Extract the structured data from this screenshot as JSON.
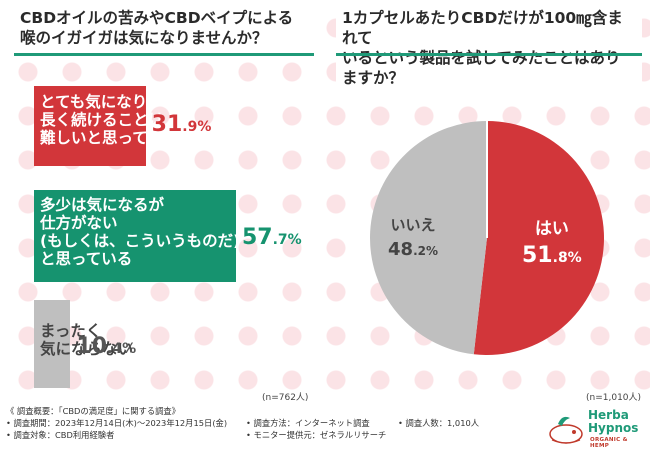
{
  "left_chart": {
    "title_line1": "CBDオイルの苦みやCBDベイプによる",
    "title_line2": "喉のイガイガは気になりませんか？",
    "n": "(n=762人)",
    "bars": [
      {
        "label": [
          "とても気になり、",
          "長く続けることは",
          "難しいと思っている"
        ],
        "value": 31.9,
        "pct_int": "31",
        "pct_dec": ".9%",
        "color": "#d2363a"
      },
      {
        "label": [
          "多少は気になるが",
          "仕方がない",
          "(もしくは、こういうものだ)",
          "と思っている"
        ],
        "value": 57.7,
        "pct_int": "57",
        "pct_dec": ".7%",
        "color": "#16936f"
      },
      {
        "label": [
          "まったく",
          "気にならない"
        ],
        "value": 10.4,
        "pct_int": "10",
        "pct_dec": ".4%",
        "color": "#bfbfbf"
      }
    ]
  },
  "right_chart": {
    "title_line1": "1カプセルあたりCBDだけが100㎎含まれて",
    "title_line2": "いるという製品を試してみたことはありますか？",
    "n": "(n=1,010人)"
  },
  "chart_data": [
    {
      "type": "bar",
      "title": "CBDオイルの苦みやCBDベイプによる喉のイガイガは気になりませんか？",
      "categories": [
        "とても気になり、長く続けることは難しいと思っている",
        "多少は気になるが仕方がない(もしくは、こういうものだ)と思っている",
        "まったく気にならない"
      ],
      "values": [
        31.9,
        57.7,
        10.4
      ],
      "orientation": "horizontal",
      "colors": [
        "#d2363a",
        "#16936f",
        "#bfbfbf"
      ]
    },
    {
      "type": "pie",
      "title": "1カプセルあたりCBDだけが100㎎含まれているという製品を試してみたことはありますか？",
      "labels": [
        "はい",
        "いいえ"
      ],
      "values": [
        51.8,
        48.2
      ],
      "colors": [
        "#d2363a",
        "#bfbfbf"
      ]
    }
  ],
  "pie_labels": [
    {
      "label": "はい",
      "pct_int": "51",
      "pct_dec": ".8%"
    },
    {
      "label": "いいえ",
      "pct_int": "48",
      "pct_dec": ".2%"
    }
  ],
  "footer": {
    "summary": "《 調査概要：「CBDの満足度」に関する調査》",
    "period": "• 調査期間：2023年12月14日(木)～2023年12月15日(金)",
    "target": "• 調査対象：CBD利用経験者",
    "method": "• 調査方法：インターネット調査",
    "provider": "• モニター提供元：ゼネラルリサーチ",
    "count": "• 調査人数：1,010人"
  },
  "logo": {
    "line1": "Herba",
    "line2": "Hypnos",
    "sub": "ORGANIC & HEMP"
  }
}
